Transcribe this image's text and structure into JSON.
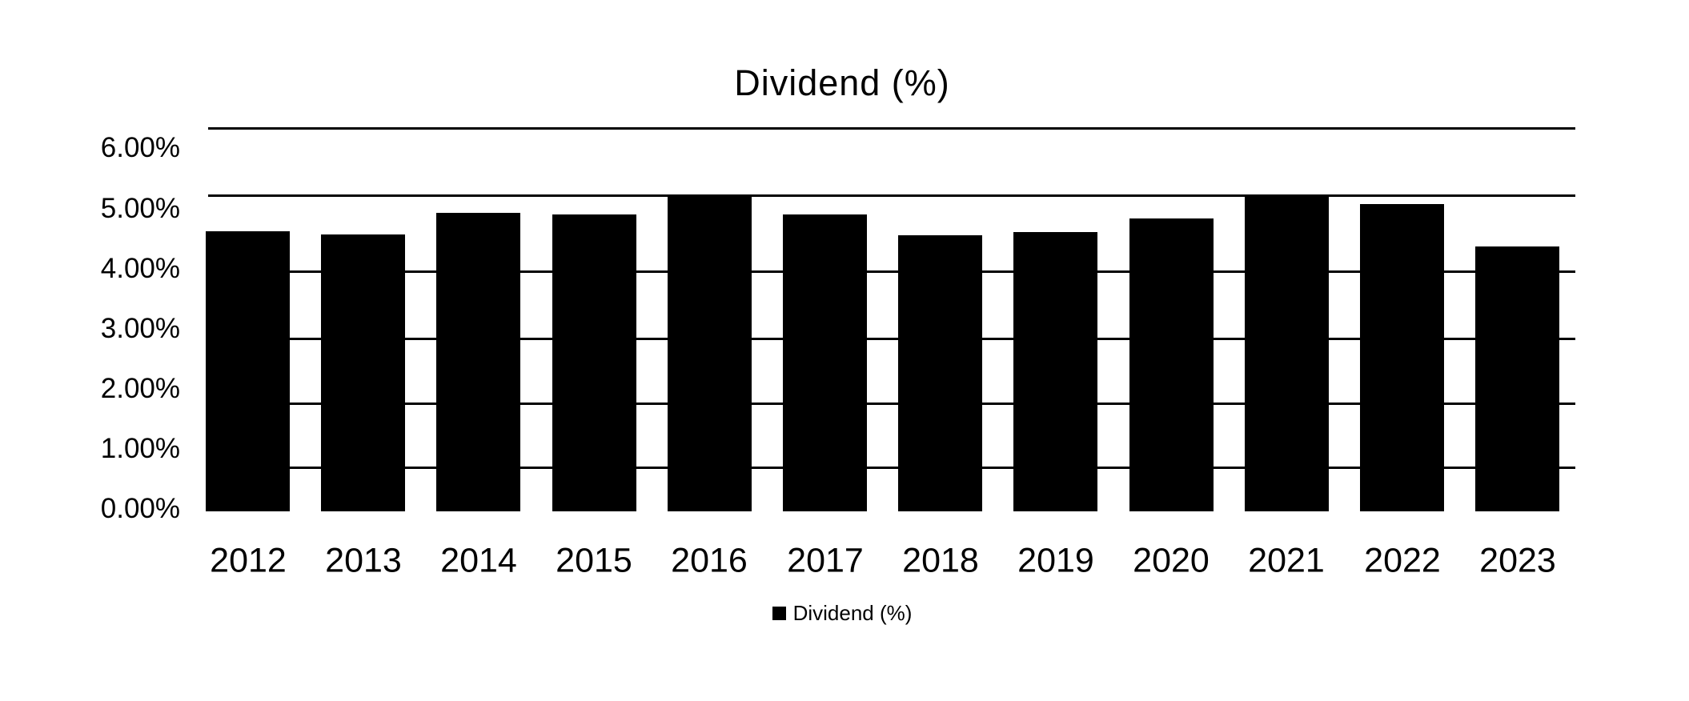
{
  "title": "Dividend (%)",
  "legend": {
    "label": "Dividend (%)",
    "marker_color": "#000000"
  },
  "colors": {
    "bar": "#000000",
    "gridline": "#000000",
    "background": "#ffffff",
    "text": "#000000"
  },
  "chart_data": {
    "type": "bar",
    "title": "Dividend (%)",
    "categories": [
      "2012",
      "2013",
      "2014",
      "2015",
      "2016",
      "2017",
      "2018",
      "2019",
      "2020",
      "2021",
      "2022",
      "2023"
    ],
    "series": [
      {
        "name": "Dividend (%)",
        "values": [
          4.64,
          4.58,
          4.94,
          4.91,
          5.21,
          4.91,
          4.57,
          4.62,
          4.85,
          5.21,
          5.09,
          4.38
        ]
      }
    ],
    "unit": "%",
    "ylim": [
      0,
      6
    ],
    "y_tick_labels": [
      "6.00%",
      "5.00%",
      "4.00%",
      "3.00%",
      "2.00%",
      "1.00%",
      "0.00%"
    ],
    "xlabel": "",
    "ylabel": "",
    "grid": true,
    "legend_position": "bottom",
    "bar_color": "#000000"
  }
}
